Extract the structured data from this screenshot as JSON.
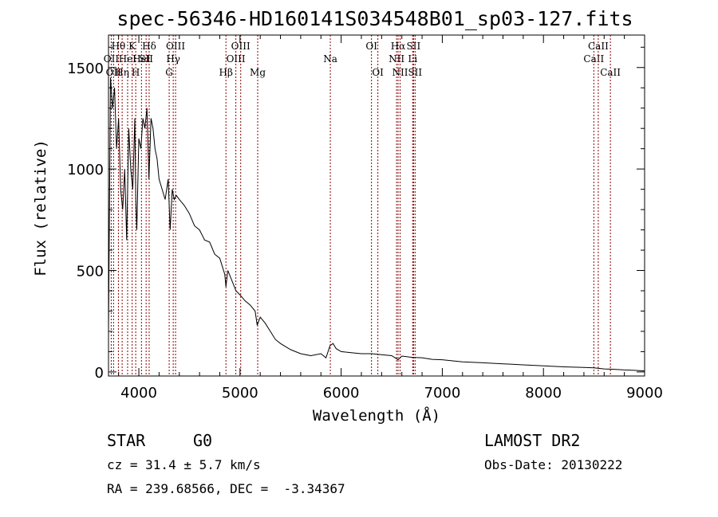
{
  "title": "spec-56346-HD160141S034548B01_sp03-127.fits",
  "chart_data": {
    "type": "line",
    "title": "spec-56346-HD160141S034548B01_sp03-127.fits",
    "xlabel": "Wavelength (Å)",
    "ylabel": "Flux (relative)",
    "xlim": [
      3700,
      9000
    ],
    "ylim": [
      -20,
      1660
    ],
    "xticks": [
      4000,
      5000,
      6000,
      7000,
      8000,
      9000
    ],
    "yticks": [
      0,
      500,
      1000,
      1500
    ],
    "grid": false,
    "series": [
      {
        "x": [
          3700,
          3720,
          3740,
          3760,
          3780,
          3800,
          3820,
          3840,
          3860,
          3880,
          3900,
          3920,
          3940,
          3960,
          3970,
          3980,
          4000,
          4020,
          4040,
          4060,
          4080,
          4100,
          4120,
          4140,
          4160,
          4180,
          4200,
          4230,
          4260,
          4290,
          4310,
          4330,
          4350,
          4370,
          4400,
          4450,
          4500,
          4550,
          4600,
          4650,
          4700,
          4750,
          4800,
          4850,
          4861,
          4880,
          4920,
          4960,
          5000,
          5050,
          5100,
          5150,
          5170,
          5200,
          5250,
          5300,
          5350,
          5400,
          5500,
          5600,
          5700,
          5800,
          5850,
          5890,
          5920,
          5950,
          6000,
          6100,
          6200,
          6300,
          6400,
          6500,
          6563,
          6600,
          6700,
          6800,
          6900,
          7000,
          7200,
          7400,
          7600,
          7800,
          8000,
          8200,
          8400,
          8500,
          8600,
          8700,
          8800,
          8900,
          9000
        ],
        "y": [
          200,
          1450,
          1300,
          1400,
          1100,
          1250,
          900,
          800,
          1000,
          650,
          1200,
          1000,
          900,
          1250,
          850,
          700,
          1150,
          1100,
          1250,
          1200,
          1300,
          950,
          1250,
          1200,
          1100,
          1050,
          950,
          900,
          850,
          950,
          700,
          900,
          850,
          870,
          850,
          820,
          780,
          720,
          700,
          650,
          640,
          580,
          560,
          480,
          420,
          500,
          450,
          400,
          380,
          350,
          330,
          300,
          230,
          270,
          240,
          200,
          160,
          140,
          110,
          90,
          80,
          90,
          70,
          130,
          140,
          115,
          100,
          95,
          90,
          90,
          85,
          80,
          60,
          78,
          72,
          70,
          62,
          60,
          50,
          45,
          40,
          35,
          30,
          25,
          22,
          20,
          15,
          13,
          10,
          8,
          5
        ]
      }
    ],
    "spectral_lines": [
      {
        "wl": 3727,
        "label": "OII",
        "row": 1
      },
      {
        "wl": 3750,
        "label": "OII",
        "row": 2
      },
      {
        "wl": 3798,
        "label": "Hθ",
        "row": 0
      },
      {
        "wl": 3835,
        "label": "Hη",
        "row": 2
      },
      {
        "wl": 3889,
        "label": "HeI",
        "row": 1
      },
      {
        "wl": 3934,
        "label": "K",
        "row": 0
      },
      {
        "wl": 3969,
        "label": "H",
        "row": 2
      },
      {
        "wl": 4026,
        "label": "HeI",
        "row": 1
      },
      {
        "wl": 4072,
        "label": "SII",
        "row": 1
      },
      {
        "wl": 4102,
        "label": "Hδ",
        "row": 0
      },
      {
        "wl": 4300,
        "label": "G",
        "row": 2
      },
      {
        "wl": 4340,
        "label": "Hγ",
        "row": 1
      },
      {
        "wl": 4363,
        "label": "OIII",
        "row": 0
      },
      {
        "wl": 4861,
        "label": "Hβ",
        "row": 2
      },
      {
        "wl": 4959,
        "label": "OIII",
        "row": 1
      },
      {
        "wl": 5007,
        "label": "OIII",
        "row": 0
      },
      {
        "wl": 5175,
        "label": "Mg",
        "row": 2
      },
      {
        "wl": 5893,
        "label": "Na",
        "row": 1
      },
      {
        "wl": 6300,
        "label": "OI",
        "row": 0
      },
      {
        "wl": 6363,
        "label": "OI",
        "row": 2
      },
      {
        "wl": 6548,
        "label": "NII",
        "row": 1
      },
      {
        "wl": 6563,
        "label": "Hα",
        "row": 0
      },
      {
        "wl": 6583,
        "label": "NII",
        "row": 2
      },
      {
        "wl": 6707,
        "label": "Li",
        "row": 1
      },
      {
        "wl": 6716,
        "label": "SII",
        "row": 0
      },
      {
        "wl": 6731,
        "label": "SII",
        "row": 2
      },
      {
        "wl": 8498,
        "label": "CaII",
        "row": 1
      },
      {
        "wl": 8542,
        "label": "CaII",
        "row": 0
      },
      {
        "wl": 8662,
        "label": "CaII",
        "row": 2
      }
    ],
    "line_color": "#000000",
    "marker_color": "#8b0000"
  },
  "info": {
    "class": "STAR",
    "subclass": "G0",
    "cz": "cz = 31.4 ± 5.7 km/s",
    "radec": "RA = 239.68566, DEC =  -3.34367",
    "survey": "LAMOST DR2",
    "obsdate": "Obs-Date: 20130222"
  }
}
